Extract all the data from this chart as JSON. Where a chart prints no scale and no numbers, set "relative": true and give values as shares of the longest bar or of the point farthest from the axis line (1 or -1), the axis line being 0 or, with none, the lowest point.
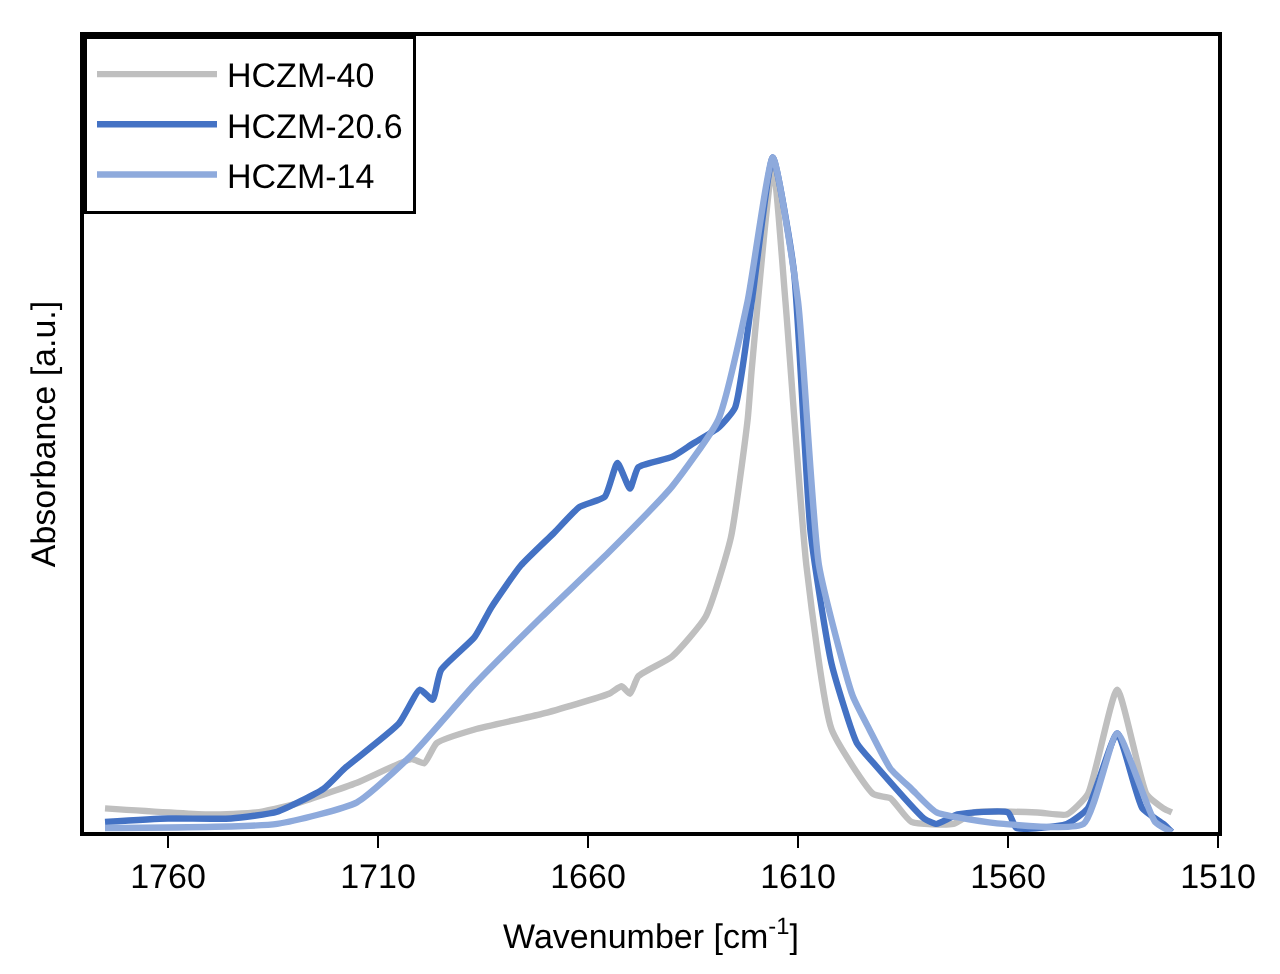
{
  "chart_data": {
    "type": "line",
    "relative": true,
    "xlabel": "Wavenumber [cm$^{-1}$]",
    "ylabel": "Absorbance [a.u.]",
    "xlim": [
      1780,
      1510
    ],
    "xticks": [
      1760,
      1710,
      1660,
      1610,
      1560,
      1510
    ],
    "legend": "top left",
    "marker": "none",
    "line_style": "solid",
    "series": [
      {
        "name": "HCZM-40",
        "color": "#bfbfbf",
        "x": [
          1775,
          1750,
          1739,
          1730,
          1715,
          1702,
          1699,
          1696,
          1687,
          1671,
          1655,
          1652,
          1650,
          1648,
          1640,
          1632,
          1626,
          1622,
          1621,
          1616,
          1613,
          1608,
          1602,
          1592,
          1588,
          1583,
          1573,
          1568,
          1553,
          1546,
          1541,
          1534,
          1527,
          1523,
          1521
        ],
        "values": [
          0.035,
          0.026,
          0.029,
          0.041,
          0.073,
          0.108,
          0.102,
          0.132,
          0.152,
          0.175,
          0.205,
          0.216,
          0.205,
          0.231,
          0.26,
          0.319,
          0.436,
          0.611,
          0.687,
          0.99,
          0.787,
          0.395,
          0.152,
          0.056,
          0.05,
          0.015,
          0.012,
          0.029,
          0.029,
          0.026,
          0.056,
          0.211,
          0.056,
          0.035,
          0.029
        ]
      },
      {
        "name": "HCZM-20.6",
        "color": "#4472c4",
        "x": [
          1775,
          1760,
          1745,
          1734,
          1723,
          1718,
          1705,
          1700,
          1697,
          1695,
          1687,
          1683,
          1676,
          1668,
          1662,
          1656,
          1653,
          1650,
          1648,
          1640,
          1635,
          1629,
          1625,
          1621,
          1616,
          1611,
          1607,
          1602,
          1596,
          1592,
          1580,
          1577,
          1572,
          1560,
          1558,
          1546,
          1541,
          1534,
          1528,
          1523,
          1521
        ],
        "values": [
          0.015,
          0.02,
          0.02,
          0.03,
          0.064,
          0.094,
          0.161,
          0.211,
          0.196,
          0.24,
          0.289,
          0.333,
          0.395,
          0.444,
          0.482,
          0.497,
          0.547,
          0.509,
          0.541,
          0.556,
          0.576,
          0.599,
          0.629,
          0.787,
          1.0,
          0.833,
          0.444,
          0.249,
          0.132,
          0.102,
          0.02,
          0.012,
          0.026,
          0.029,
          0.006,
          0.012,
          0.035,
          0.146,
          0.035,
          0.012,
          0.0
        ]
      },
      {
        "name": "HCZM-14",
        "color": "#8eaadc",
        "x": [
          1775,
          1734,
          1715,
          1702,
          1687,
          1671,
          1655,
          1640,
          1629,
          1622,
          1616,
          1610,
          1605,
          1597,
          1593,
          1588,
          1583,
          1577,
          1561,
          1542,
          1534,
          1525,
          1521
        ],
        "values": [
          0.006,
          0.012,
          0.044,
          0.114,
          0.219,
          0.319,
          0.415,
          0.512,
          0.611,
          0.787,
          1.0,
          0.787,
          0.395,
          0.202,
          0.152,
          0.094,
          0.064,
          0.029,
          0.012,
          0.012,
          0.146,
          0.015,
          0.0
        ]
      }
    ]
  }
}
